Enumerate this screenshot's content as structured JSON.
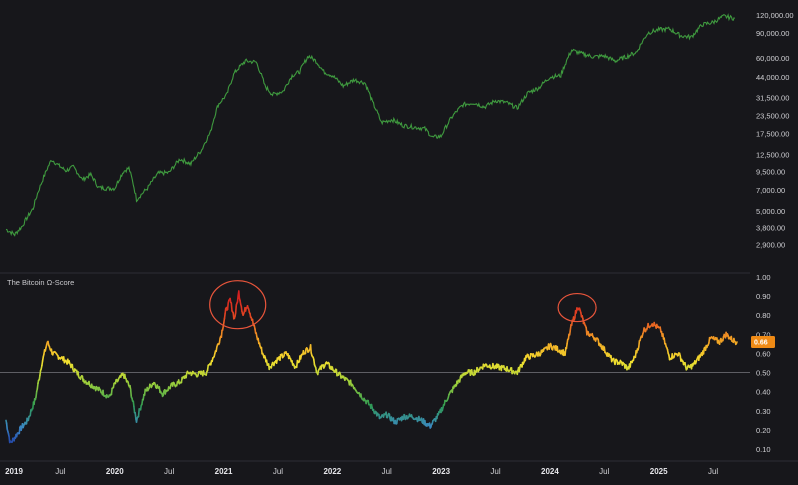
{
  "chart_data": [
    {
      "type": "line",
      "title": "",
      "yscale": "log",
      "ylim": [
        2400,
        135000
      ],
      "xlim": [
        2019.0,
        2025.72
      ],
      "y_ticks": [
        "120,000.00",
        "90,000.00",
        "60,000.00",
        "44,000.00",
        "31,500.00",
        "23,500.00",
        "17,500.00",
        "12,500.00",
        "9,500.00",
        "7,000.00",
        "5,000.00",
        "3,800.00",
        "2,900.00"
      ],
      "line_color": "#3f9a3f",
      "series": [
        {
          "x": [
            2019.0,
            2019.08,
            2019.15,
            2019.25,
            2019.33,
            2019.42,
            2019.48,
            2019.55,
            2019.62,
            2019.7,
            2019.78,
            2019.85,
            2019.92,
            2020.0,
            2020.08,
            2020.13,
            2020.2,
            2020.3,
            2020.4,
            2020.5,
            2020.6,
            2020.7,
            2020.8,
            2020.88,
            2020.95,
            2021.03,
            2021.1,
            2021.2,
            2021.3,
            2021.38,
            2021.45,
            2021.55,
            2021.63,
            2021.7,
            2021.78,
            2021.85,
            2021.92,
            2022.0,
            2022.1,
            2022.2,
            2022.3,
            2022.37,
            2022.45,
            2022.55,
            2022.65,
            2022.75,
            2022.85,
            2022.92,
            2023.0,
            2023.1,
            2023.2,
            2023.3,
            2023.4,
            2023.5,
            2023.6,
            2023.7,
            2023.8,
            2023.9,
            2024.0,
            2024.1,
            2024.2,
            2024.3,
            2024.4,
            2024.5,
            2024.6,
            2024.7,
            2024.8,
            2024.9,
            2025.0,
            2025.1,
            2025.2,
            2025.3,
            2025.4,
            2025.5,
            2025.6,
            2025.7
          ],
          "y": [
            3700,
            3400,
            3900,
            5200,
            8000,
            11500,
            10500,
            9600,
            10200,
            8300,
            9000,
            7300,
            7200,
            7200,
            9500,
            10000,
            6000,
            7200,
            9200,
            9300,
            11600,
            10700,
            13500,
            18000,
            28000,
            33000,
            47000,
            57000,
            56000,
            38000,
            33000,
            35000,
            45000,
            48000,
            62000,
            57000,
            48000,
            45000,
            38000,
            42000,
            40000,
            29000,
            21000,
            22000,
            20000,
            19500,
            19000,
            16500,
            16800,
            23000,
            28000,
            29000,
            27000,
            30000,
            29000,
            26500,
            34000,
            37000,
            44000,
            45000,
            68000,
            64000,
            61000,
            62000,
            57000,
            61000,
            66000,
            90000,
            95000,
            96000,
            86000,
            84000,
            103000,
            107000,
            118000,
            114000
          ]
        }
      ]
    },
    {
      "type": "line",
      "title": "The Bitcoin Ω-Score",
      "ylim": [
        0.05,
        1.0
      ],
      "xlim": [
        2019.0,
        2025.72
      ],
      "y_ticks": [
        "1.00",
        "0.90",
        "0.80",
        "0.70",
        "0.60",
        "0.50",
        "0.40",
        "0.30",
        "0.20",
        "0.10"
      ],
      "x_ticks": [
        "2019",
        "Jul",
        "2020",
        "Jul",
        "2021",
        "Jul",
        "2022",
        "Jul",
        "2023",
        "Jul",
        "2024",
        "Jul",
        "2025",
        "Jul"
      ],
      "reference_line": 0.5,
      "current_value": "0.66",
      "current_badge_color": "#ef8a15",
      "color_scale": [
        "#1a2a9b",
        "#3b88c4",
        "#2f9a52",
        "#9bcf3c",
        "#f2e030",
        "#f2a024",
        "#e24a23",
        "#d42020"
      ],
      "highlighted_regions": [
        "2021 peak",
        "2024 peak"
      ],
      "series": [
        {
          "x": [
            2019.0,
            2019.04,
            2019.08,
            2019.14,
            2019.2,
            2019.27,
            2019.33,
            2019.38,
            2019.43,
            2019.5,
            2019.58,
            2019.65,
            2019.72,
            2019.8,
            2019.88,
            2019.95,
            2020.0,
            2020.08,
            2020.14,
            2020.2,
            2020.28,
            2020.36,
            2020.44,
            2020.52,
            2020.6,
            2020.68,
            2020.76,
            2020.84,
            2020.92,
            2020.98,
            2021.02,
            2021.06,
            2021.1,
            2021.14,
            2021.18,
            2021.22,
            2021.26,
            2021.3,
            2021.36,
            2021.42,
            2021.5,
            2021.58,
            2021.66,
            2021.74,
            2021.8,
            2021.86,
            2021.94,
            2022.0,
            2022.08,
            2022.18,
            2022.28,
            2022.36,
            2022.44,
            2022.5,
            2022.58,
            2022.66,
            2022.74,
            2022.82,
            2022.9,
            2022.98,
            2023.06,
            2023.14,
            2023.22,
            2023.3,
            2023.4,
            2023.5,
            2023.6,
            2023.7,
            2023.78,
            2023.86,
            2023.94,
            2024.0,
            2024.08,
            2024.14,
            2024.2,
            2024.26,
            2024.34,
            2024.42,
            2024.5,
            2024.58,
            2024.66,
            2024.72,
            2024.78,
            2024.86,
            2024.94,
            2025.02,
            2025.1,
            2025.18,
            2025.26,
            2025.32,
            2025.4,
            2025.48,
            2025.56,
            2025.62,
            2025.68,
            2025.72
          ],
          "y": [
            0.25,
            0.13,
            0.16,
            0.21,
            0.25,
            0.36,
            0.55,
            0.66,
            0.6,
            0.58,
            0.55,
            0.5,
            0.46,
            0.43,
            0.4,
            0.37,
            0.44,
            0.49,
            0.42,
            0.25,
            0.4,
            0.45,
            0.39,
            0.43,
            0.45,
            0.5,
            0.49,
            0.5,
            0.6,
            0.7,
            0.82,
            0.88,
            0.78,
            0.92,
            0.8,
            0.86,
            0.78,
            0.7,
            0.6,
            0.53,
            0.57,
            0.6,
            0.53,
            0.61,
            0.63,
            0.5,
            0.55,
            0.52,
            0.48,
            0.44,
            0.37,
            0.32,
            0.26,
            0.28,
            0.24,
            0.27,
            0.27,
            0.25,
            0.22,
            0.28,
            0.37,
            0.44,
            0.5,
            0.5,
            0.54,
            0.53,
            0.52,
            0.5,
            0.58,
            0.59,
            0.61,
            0.64,
            0.62,
            0.6,
            0.75,
            0.85,
            0.71,
            0.68,
            0.62,
            0.56,
            0.55,
            0.52,
            0.58,
            0.72,
            0.76,
            0.72,
            0.58,
            0.6,
            0.52,
            0.54,
            0.6,
            0.68,
            0.66,
            0.7,
            0.67,
            0.66
          ]
        }
      ]
    }
  ]
}
